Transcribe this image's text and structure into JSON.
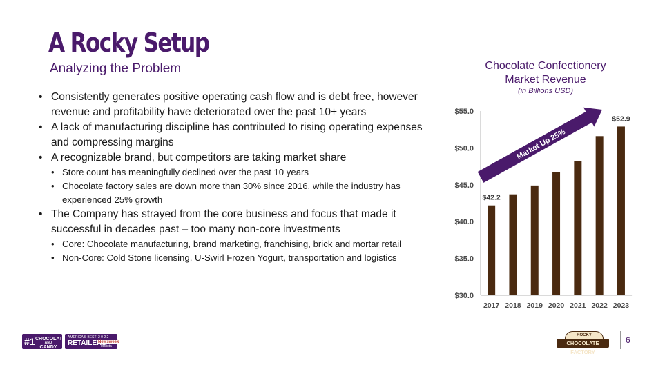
{
  "slide": {
    "title": "A Rocky Setup",
    "subtitle": "Analyzing the Problem",
    "page_number": "6"
  },
  "bullets": [
    {
      "text": "Consistently generates positive operating cash flow and is debt free, however revenue and profitability have deteriorated over the past 10+ years",
      "subs": []
    },
    {
      "text": "A lack of manufacturing discipline has contributed to rising operating expenses and compressing margins",
      "subs": []
    },
    {
      "text": "A recognizable brand, but competitors are taking market share",
      "subs": [
        "Store count has meaningfully declined over the past 10 years",
        "Chocolate factory sales are down more than 30% since 2016, while the industry has experienced 25% growth"
      ]
    },
    {
      "text": "The Company has strayed from the core business and focus that made it successful in decades past – too many non-core investments",
      "subs": [
        "Core: Chocolate manufacturing, brand marketing, franchising, brick and mortar retail",
        "Non-Core: Cold Stone licensing, U-Swirl Frozen Yogurt, transportation and logistics"
      ]
    }
  ],
  "bullet_glyph": "•",
  "chart_data": {
    "type": "bar",
    "title_line1": "Chocolate Confectionery",
    "title_line2": "Market Revenue",
    "subtitle": "(in Billions USD)",
    "categories": [
      "2017",
      "2018",
      "2019",
      "2020",
      "2021",
      "2022",
      "2023"
    ],
    "values": [
      42.2,
      43.7,
      44.9,
      46.7,
      48.2,
      51.6,
      52.9
    ],
    "data_labels": {
      "0": "$42.2",
      "6": "$52.9"
    },
    "yticks": [
      "$30.0",
      "$35.0",
      "$40.0",
      "$45.0",
      "$50.0",
      "$55.0"
    ],
    "ylim": [
      30,
      55
    ],
    "annotation": "Market Up 25%",
    "bar_color": "#4a2a10",
    "arrow_color": "#4a1a6b",
    "grid": false
  },
  "footer": {
    "badge1": {
      "big": "#1",
      "line1": "CHOCOLATE",
      "line2": "AND",
      "line3": "CANDY SHOP"
    },
    "badge2": {
      "top": "AMERICA'S BEST",
      "main": "RETAILERS",
      "year": "2 0 2 2",
      "brand": "Newsweek",
      "partner": "statista"
    },
    "logo": {
      "top": "ROCKY MOUNTAIN",
      "main": "CHOCOLATE FACTORY"
    }
  },
  "colors": {
    "primary": "#4a1a6b",
    "chocolate": "#4a2a10"
  }
}
